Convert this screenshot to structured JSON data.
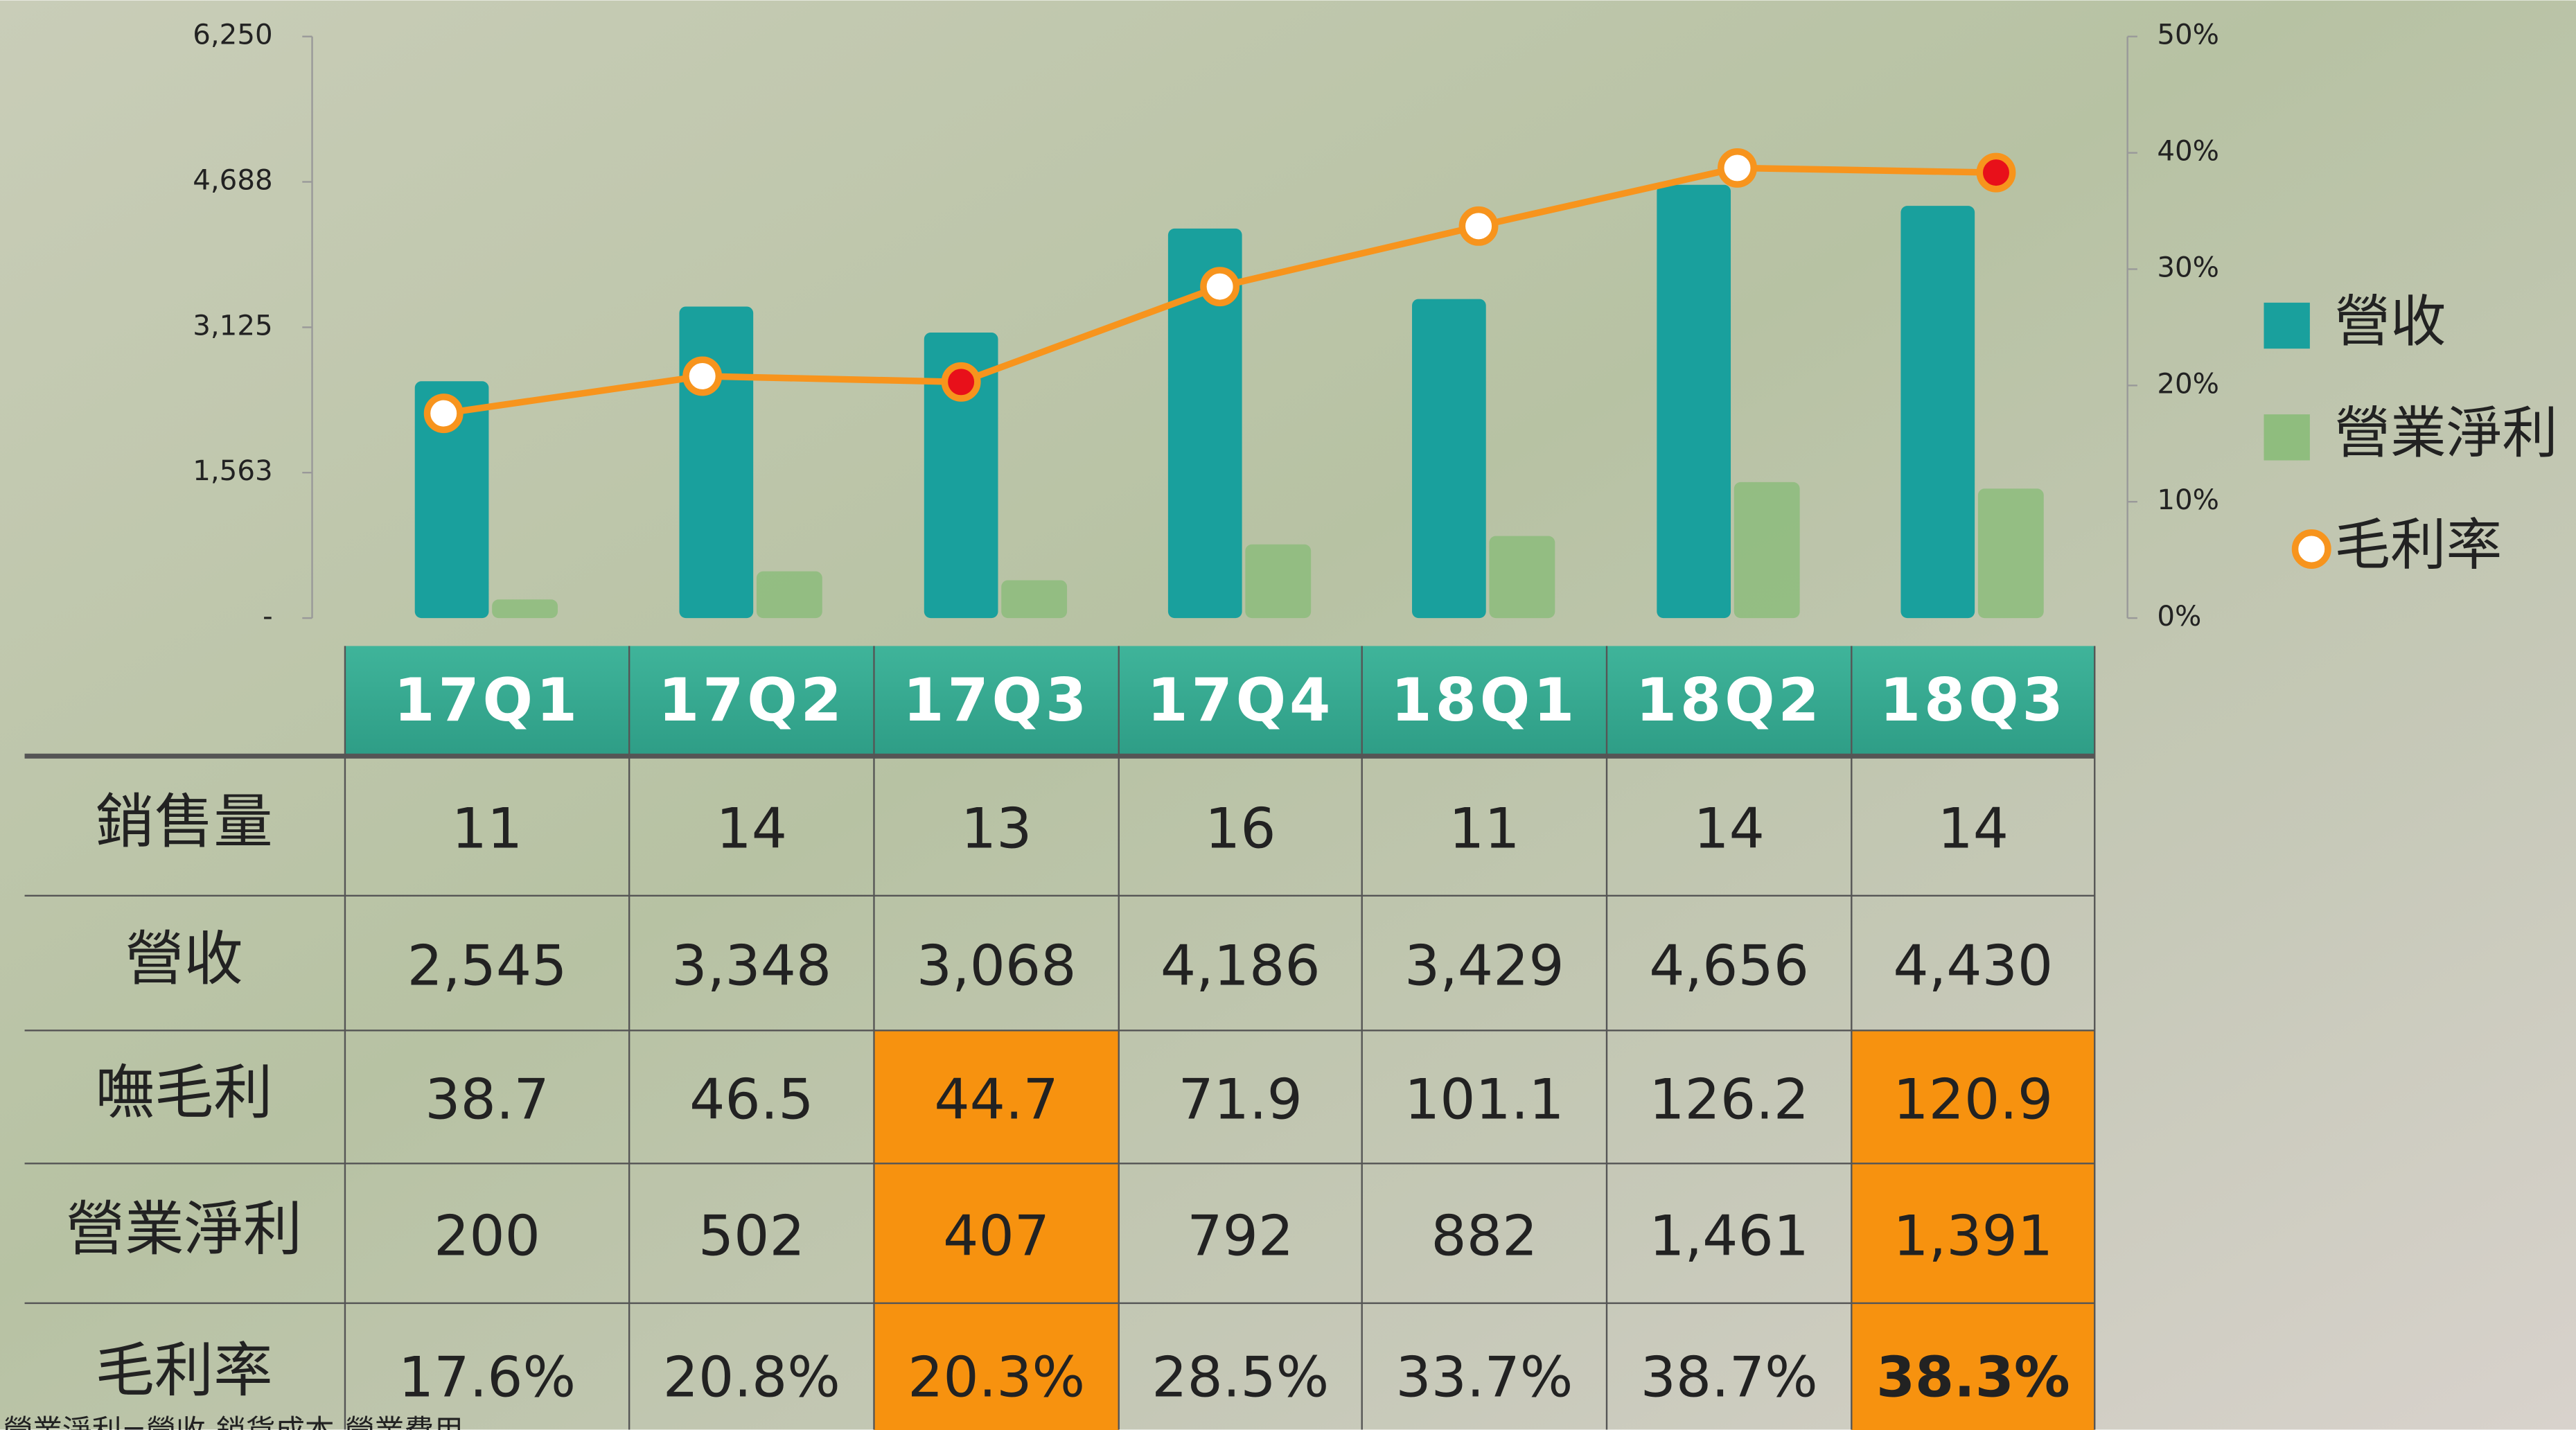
{
  "chart_data": {
    "type": "bar-line",
    "categories": [
      "17Q1",
      "17Q2",
      "17Q3",
      "17Q4",
      "18Q1",
      "18Q2",
      "18Q3"
    ],
    "ylim": [
      0,
      6250
    ],
    "yticks": [
      {
        "value": 0,
        "label": "-"
      },
      {
        "value": 1563,
        "label": "1,563"
      },
      {
        "value": 3125,
        "label": "3,125"
      },
      {
        "value": 4688,
        "label": "4,688"
      },
      {
        "value": 6250,
        "label": "6,250"
      }
    ],
    "y2lim": [
      0,
      50
    ],
    "y2ticks": [
      {
        "value": 0,
        "label": "0%"
      },
      {
        "value": 10,
        "label": "10%"
      },
      {
        "value": 20,
        "label": "20%"
      },
      {
        "value": 30,
        "label": "30%"
      },
      {
        "value": 40,
        "label": "40%"
      },
      {
        "value": 50,
        "label": "50%"
      }
    ],
    "series": [
      {
        "name": "營收",
        "type": "bar",
        "color": "#19a09d",
        "values": [
          2545,
          3348,
          3068,
          4186,
          3429,
          4656,
          4430
        ]
      },
      {
        "name": "營業淨利",
        "type": "bar",
        "color": "#8fbd7e",
        "values": [
          200,
          502,
          407,
          792,
          882,
          1461,
          1391
        ]
      },
      {
        "name": "毛利率",
        "type": "line",
        "axis": "y2",
        "color": "#f7941d",
        "values": [
          17.6,
          20.8,
          20.3,
          28.5,
          33.7,
          38.7,
          38.3
        ],
        "marker_colors": [
          "#ffffff",
          "#ffffff",
          "#e8101a",
          "#ffffff",
          "#ffffff",
          "#ffffff",
          "#e8101a"
        ]
      }
    ]
  },
  "table": {
    "rows": [
      {
        "label": "銷售量",
        "cells": [
          "11",
          "14",
          "13",
          "16",
          "11",
          "14",
          "14"
        ]
      },
      {
        "label": "營收",
        "cells": [
          "2,545",
          "3,348",
          "3,068",
          "4,186",
          "3,429",
          "4,656",
          "4,430"
        ]
      },
      {
        "label": "嘸毛利",
        "cells": [
          "38.7",
          "46.5",
          "44.7",
          "71.9",
          "101.1",
          "126.2",
          "120.9"
        ]
      },
      {
        "label": "營業淨利",
        "cells": [
          "200",
          "502",
          "407",
          "792",
          "882",
          "1,461",
          "1,391"
        ]
      },
      {
        "label": "毛利率",
        "cells": [
          "17.6%",
          "20.8%",
          "20.3%",
          "28.5%",
          "33.7%",
          "38.7%",
          "38.3%"
        ]
      }
    ],
    "highlight_color": "#f7920f",
    "highlight_cells": [
      [
        2,
        2
      ],
      [
        2,
        6
      ],
      [
        3,
        2
      ],
      [
        3,
        6
      ],
      [
        4,
        2
      ],
      [
        4,
        6
      ]
    ],
    "bold_cells": [
      [
        4,
        6
      ]
    ]
  },
  "footnote": "營業淨利=營收-銷貨成本-營業費用"
}
